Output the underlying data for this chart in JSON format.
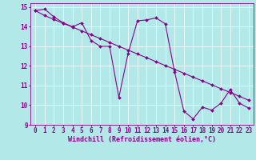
{
  "xlabel": "Windchill (Refroidissement éolien,°C)",
  "background_color": "#b2e8e8",
  "line_color": "#8b008b",
  "grid_color": "#ffffff",
  "xlim": [
    -0.5,
    23.5
  ],
  "ylim": [
    9,
    15.2
  ],
  "xticks": [
    0,
    1,
    2,
    3,
    4,
    5,
    6,
    7,
    8,
    9,
    10,
    11,
    12,
    13,
    14,
    15,
    16,
    17,
    18,
    19,
    20,
    21,
    22,
    23
  ],
  "yticks": [
    9,
    10,
    11,
    12,
    13,
    14,
    15
  ],
  "series1_x": [
    0,
    1,
    2,
    3,
    4,
    5,
    6,
    7,
    8,
    9,
    10,
    11,
    12,
    13,
    14,
    15,
    16,
    17,
    18,
    19,
    20,
    21,
    22,
    23
  ],
  "series1_y": [
    14.82,
    14.9,
    14.5,
    14.2,
    14.0,
    14.2,
    13.3,
    13.0,
    13.0,
    10.4,
    12.65,
    14.3,
    14.35,
    14.45,
    14.15,
    11.7,
    9.7,
    9.3,
    9.9,
    9.75,
    10.1,
    10.8,
    10.1,
    9.85
  ],
  "series2_x": [
    0,
    1,
    2,
    3,
    4,
    5,
    6,
    7,
    8,
    9,
    10,
    11,
    12,
    13,
    14,
    15,
    16,
    17,
    18,
    19,
    20,
    21,
    22,
    23
  ],
  "series2_y": [
    14.82,
    14.57,
    14.37,
    14.18,
    13.98,
    13.79,
    13.59,
    13.4,
    13.2,
    13.0,
    12.81,
    12.61,
    12.42,
    12.22,
    12.02,
    11.83,
    11.63,
    11.43,
    11.24,
    11.04,
    10.84,
    10.65,
    10.45,
    10.25
  ],
  "tick_fontsize": 5.5,
  "label_fontsize": 6,
  "marker_size": 2
}
